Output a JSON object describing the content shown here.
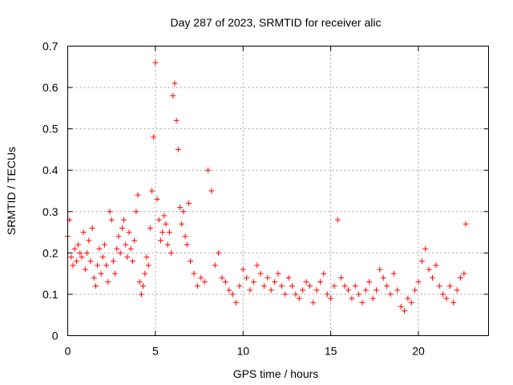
{
  "chart_data": {
    "type": "scatter",
    "title": "Day 287 of 2023, SRMTID for receiver alic",
    "xlabel": "GPS time / hours",
    "ylabel": "SRMTID / TECUs",
    "xlim": [
      0,
      24
    ],
    "ylim": [
      0,
      0.7
    ],
    "xticks": [
      0,
      5,
      10,
      15,
      20
    ],
    "yticks": [
      0,
      0.1,
      0.2,
      0.3,
      0.4,
      0.5,
      0.6,
      0.7
    ],
    "xtick_labels": [
      "0",
      "5",
      "10",
      "15",
      "20"
    ],
    "ytick_labels": [
      "0",
      "0.1",
      "0.2",
      "0.3",
      "0.4",
      "0.5",
      "0.6",
      "0.7"
    ],
    "grid": true,
    "marker": "+",
    "color": "#ff0000",
    "series": [
      {
        "name": "SRMTID",
        "x": [
          0.0,
          0.1,
          0.2,
          0.3,
          0.4,
          0.5,
          0.6,
          0.7,
          0.8,
          0.9,
          1.0,
          1.1,
          1.2,
          1.3,
          1.4,
          1.5,
          1.6,
          1.7,
          1.8,
          1.9,
          2.0,
          2.1,
          2.2,
          2.3,
          2.4,
          2.5,
          2.6,
          2.7,
          2.8,
          2.9,
          3.0,
          3.1,
          3.2,
          3.3,
          3.4,
          3.5,
          3.6,
          3.7,
          3.8,
          3.9,
          4.0,
          4.1,
          4.2,
          4.3,
          4.4,
          4.5,
          4.6,
          4.7,
          4.8,
          4.9,
          5.0,
          5.1,
          5.2,
          5.3,
          5.4,
          5.5,
          5.6,
          5.7,
          5.8,
          5.9,
          6.0,
          6.1,
          6.2,
          6.3,
          6.4,
          6.5,
          6.6,
          6.7,
          6.8,
          6.9,
          7.0,
          7.2,
          7.4,
          7.6,
          7.8,
          8.0,
          8.2,
          8.4,
          8.6,
          8.8,
          9.0,
          9.2,
          9.4,
          9.6,
          9.8,
          10.0,
          10.2,
          10.4,
          10.6,
          10.8,
          11.0,
          11.2,
          11.4,
          11.6,
          11.8,
          12.0,
          12.2,
          12.4,
          12.6,
          12.8,
          13.0,
          13.2,
          13.4,
          13.6,
          13.8,
          14.0,
          14.2,
          14.4,
          14.6,
          14.8,
          15.0,
          15.2,
          15.4,
          15.6,
          15.8,
          16.0,
          16.2,
          16.4,
          16.6,
          16.8,
          17.0,
          17.2,
          17.4,
          17.6,
          17.8,
          18.0,
          18.2,
          18.4,
          18.6,
          18.8,
          19.0,
          19.2,
          19.4,
          19.6,
          19.8,
          20.0,
          20.2,
          20.4,
          20.6,
          20.8,
          21.0,
          21.2,
          21.4,
          21.6,
          21.8,
          22.0,
          22.2,
          22.4,
          22.6,
          22.7
        ],
        "y": [
          0.24,
          0.28,
          0.19,
          0.17,
          0.21,
          0.18,
          0.22,
          0.2,
          0.19,
          0.25,
          0.16,
          0.2,
          0.23,
          0.18,
          0.26,
          0.14,
          0.12,
          0.17,
          0.21,
          0.15,
          0.19,
          0.22,
          0.17,
          0.13,
          0.3,
          0.28,
          0.18,
          0.15,
          0.21,
          0.24,
          0.2,
          0.26,
          0.28,
          0.22,
          0.19,
          0.25,
          0.21,
          0.18,
          0.23,
          0.3,
          0.34,
          0.13,
          0.1,
          0.12,
          0.15,
          0.19,
          0.17,
          0.26,
          0.35,
          0.48,
          0.66,
          0.33,
          0.28,
          0.23,
          0.25,
          0.29,
          0.27,
          0.22,
          0.25,
          0.2,
          0.58,
          0.61,
          0.52,
          0.45,
          0.31,
          0.27,
          0.3,
          0.24,
          0.22,
          0.32,
          0.18,
          0.15,
          0.12,
          0.14,
          0.13,
          0.4,
          0.35,
          0.17,
          0.2,
          0.14,
          0.13,
          0.11,
          0.1,
          0.08,
          0.12,
          0.16,
          0.14,
          0.11,
          0.13,
          0.17,
          0.15,
          0.12,
          0.14,
          0.11,
          0.13,
          0.15,
          0.12,
          0.1,
          0.14,
          0.12,
          0.1,
          0.09,
          0.11,
          0.13,
          0.12,
          0.08,
          0.11,
          0.13,
          0.15,
          0.1,
          0.09,
          0.12,
          0.28,
          0.14,
          0.12,
          0.11,
          0.09,
          0.12,
          0.1,
          0.08,
          0.11,
          0.13,
          0.09,
          0.11,
          0.16,
          0.14,
          0.12,
          0.1,
          0.15,
          0.11,
          0.07,
          0.06,
          0.09,
          0.08,
          0.11,
          0.13,
          0.18,
          0.21,
          0.16,
          0.14,
          0.17,
          0.12,
          0.1,
          0.09,
          0.12,
          0.08,
          0.11,
          0.14,
          0.15,
          0.27
        ]
      }
    ]
  }
}
